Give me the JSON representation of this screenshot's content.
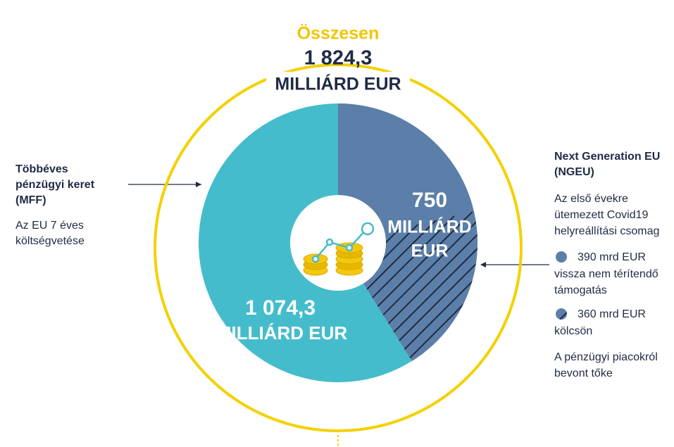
{
  "chart_data": {
    "type": "pie",
    "title": "Összesen",
    "total": 1824.3,
    "total_label": "1 824,3",
    "total_unit": "MILLIÁRD EUR",
    "values": [
      750,
      1074.3
    ],
    "value_labels": [
      "750",
      "1 074,3"
    ],
    "unit_labels": [
      [
        "MILLIÁRD",
        "EUR"
      ],
      [
        "MILLIÁRD EUR"
      ]
    ],
    "colors": [
      "#5b7fa8",
      "#45bccb"
    ],
    "names": [
      [
        "Next Generation EU",
        "(NGEU)"
      ],
      [
        "Többéves",
        "pénzügyi keret",
        "(MFF)"
      ]
    ],
    "descriptions": [
      [
        "Az első évekre",
        "ütemezett Covid19",
        "helyreállítási csomag"
      ],
      [
        "Az EU 7 éves",
        "költségvetése"
      ]
    ],
    "breakdown": {
      "values": [
        390,
        360
      ],
      "value_labels": [
        "390 mrd EUR",
        "360 mrd EUR"
      ],
      "descriptions": [
        [
          "vissza nem térítendő",
          "támogatás"
        ],
        [
          "kölcsön"
        ]
      ],
      "footnote": [
        "A pénzügyi piacokról",
        "bevont tőke"
      ]
    }
  }
}
